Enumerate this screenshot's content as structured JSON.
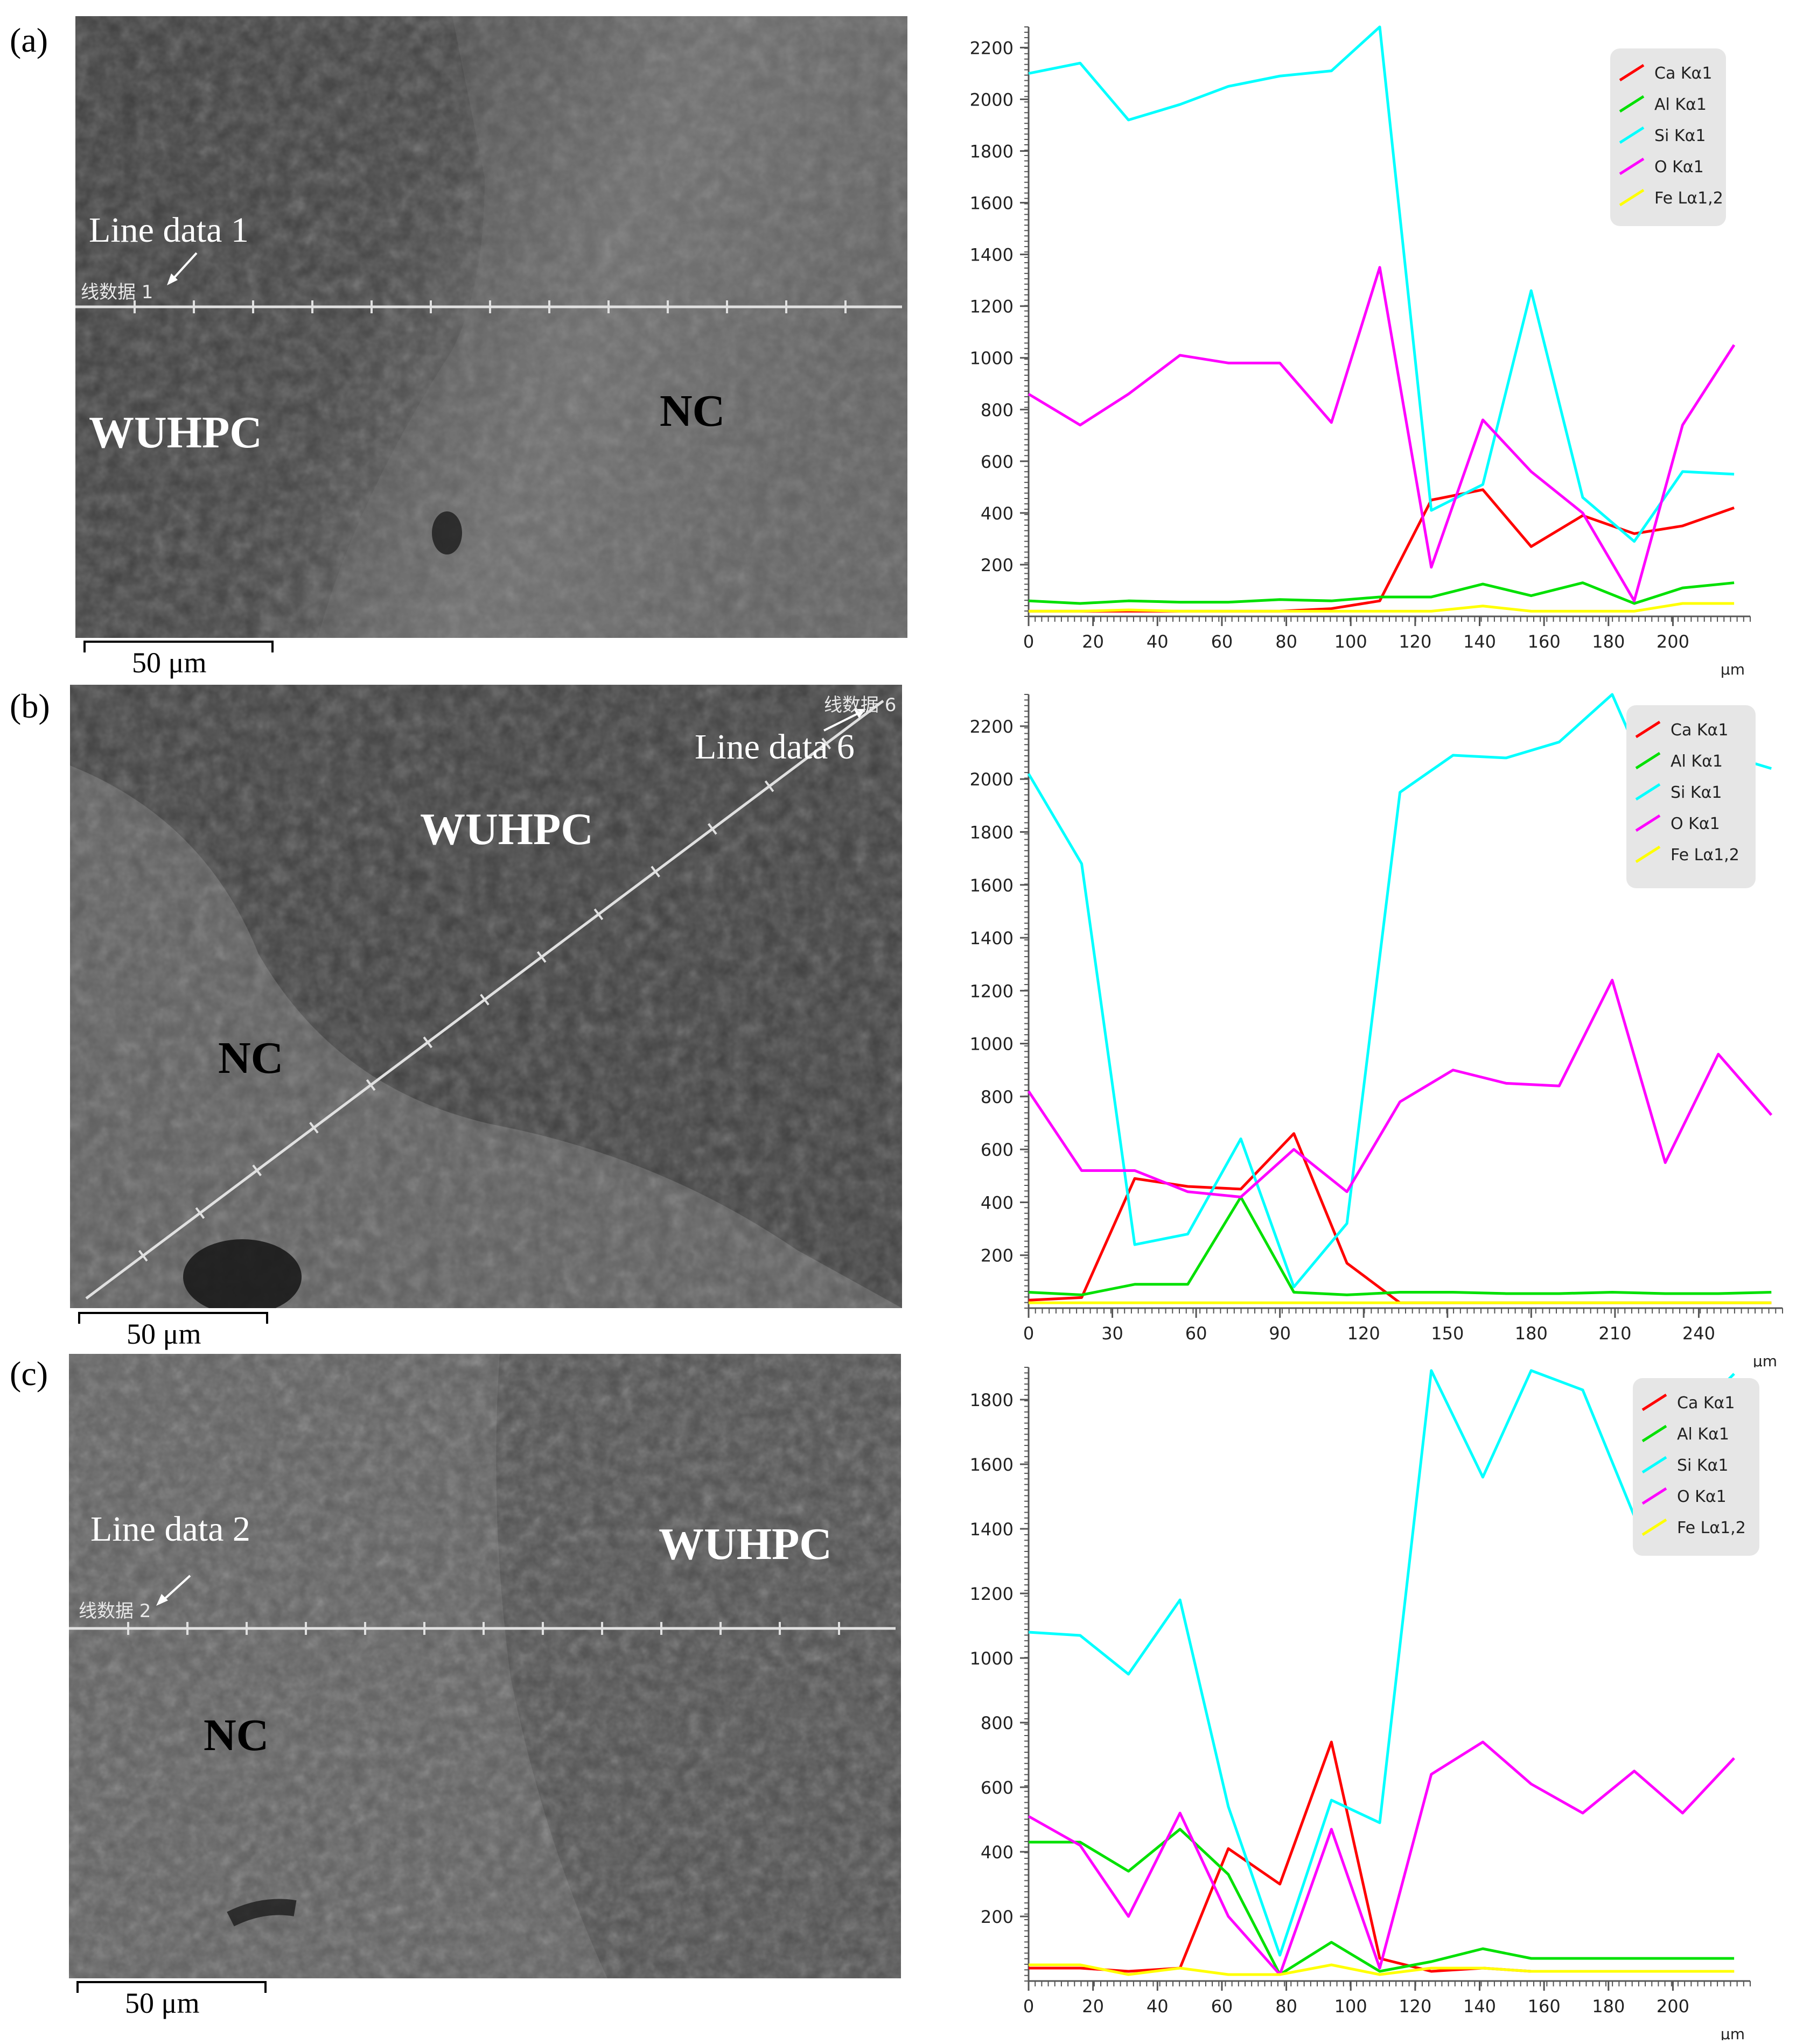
{
  "panels": [
    {
      "letter": "(a)",
      "sem": {
        "line_caption": "Line data 1",
        "line_small": "线数据 1",
        "labels": [
          "WUHPC",
          "NC"
        ],
        "scale_text": "50 μm"
      },
      "chart_data": {
        "type": "line",
        "x": [
          0,
          16,
          31,
          47,
          62,
          78,
          94,
          109,
          125,
          141,
          156,
          172,
          188,
          203,
          219
        ],
        "xticks": [
          0,
          20,
          40,
          60,
          80,
          100,
          120,
          140,
          160,
          180,
          200
        ],
        "xlim": [
          0,
          224
        ],
        "xunit": "μm",
        "yticks": [
          200,
          400,
          600,
          800,
          1000,
          1200,
          1400,
          1600,
          1800,
          2000,
          2200
        ],
        "ylim": [
          0,
          2280
        ],
        "series": [
          {
            "name": "Ca Kα1",
            "color": "#ff0000",
            "values": [
              20,
              20,
              20,
              20,
              20,
              20,
              30,
              60,
              450,
              490,
              270,
              390,
              320,
              350,
              420
            ]
          },
          {
            "name": "Al Kα1",
            "color": "#00e000",
            "values": [
              60,
              50,
              60,
              55,
              55,
              65,
              60,
              75,
              75,
              125,
              80,
              130,
              50,
              110,
              130
            ]
          },
          {
            "name": "Si Kα1",
            "color": "#00ffff",
            "values": [
              2100,
              2140,
              1920,
              1980,
              2050,
              2090,
              2110,
              2280,
              410,
              510,
              1260,
              460,
              290,
              560,
              550
            ]
          },
          {
            "name": "O Kα1",
            "color": "#ff00ff",
            "values": [
              860,
              740,
              860,
              1010,
              980,
              980,
              750,
              1350,
              190,
              760,
              560,
              400,
              60,
              740,
              1050
            ]
          },
          {
            "name": "Fe Lα1,2",
            "color": "#ffff00",
            "values": [
              20,
              20,
              25,
              20,
              20,
              20,
              20,
              20,
              20,
              40,
              20,
              20,
              20,
              50,
              50
            ]
          }
        ]
      }
    },
    {
      "letter": "(b)",
      "sem": {
        "line_caption": "Line data 6",
        "line_small": "线数据 6",
        "labels": [
          "WUHPC",
          "NC"
        ],
        "scale_text": "50 μm"
      },
      "chart_data": {
        "type": "line",
        "x": [
          0,
          19,
          38,
          57,
          76,
          95,
          114,
          133,
          152,
          171,
          190,
          209,
          228,
          247,
          266
        ],
        "xticks": [
          0,
          30,
          60,
          90,
          120,
          150,
          180,
          210,
          240
        ],
        "xlim": [
          0,
          270
        ],
        "xunit": "μm",
        "yticks": [
          200,
          400,
          600,
          800,
          1000,
          1200,
          1400,
          1600,
          1800,
          2000,
          2200
        ],
        "ylim": [
          0,
          2320
        ],
        "series": [
          {
            "name": "Ca Kα1",
            "color": "#ff0000",
            "values": [
              30,
              40,
              490,
              460,
              450,
              660,
              170,
              20,
              20,
              20,
              20,
              20,
              20,
              20,
              20
            ]
          },
          {
            "name": "Al Kα1",
            "color": "#00e000",
            "values": [
              60,
              50,
              90,
              90,
              420,
              60,
              50,
              60,
              60,
              55,
              55,
              60,
              55,
              55,
              60
            ]
          },
          {
            "name": "Si Kα1",
            "color": "#00ffff",
            "values": [
              2020,
              1680,
              240,
              280,
              640,
              80,
              320,
              1950,
              2090,
              2080,
              2140,
              2320,
              1860,
              2100,
              2040
            ]
          },
          {
            "name": "O Kα1",
            "color": "#ff00ff",
            "values": [
              820,
              520,
              520,
              440,
              420,
              600,
              440,
              780,
              900,
              850,
              840,
              1240,
              550,
              960,
              730
            ]
          },
          {
            "name": "Fe Lα1,2",
            "color": "#ffff00",
            "values": [
              20,
              20,
              20,
              20,
              20,
              20,
              20,
              20,
              20,
              20,
              20,
              20,
              20,
              20,
              20
            ]
          }
        ]
      }
    },
    {
      "letter": "(c)",
      "sem": {
        "line_caption": "Line data 2",
        "line_small": "线数据 2",
        "labels": [
          "WUHPC",
          "NC"
        ],
        "scale_text": "50 μm"
      },
      "chart_data": {
        "type": "line",
        "x": [
          0,
          16,
          31,
          47,
          62,
          78,
          94,
          109,
          125,
          141,
          156,
          172,
          188,
          203,
          219
        ],
        "xticks": [
          0,
          20,
          40,
          60,
          80,
          100,
          120,
          140,
          160,
          180,
          200
        ],
        "xlim": [
          0,
          224
        ],
        "xunit": "μm",
        "yticks": [
          200,
          400,
          600,
          800,
          1000,
          1200,
          1400,
          1600,
          1800
        ],
        "ylim": [
          0,
          1900
        ],
        "series": [
          {
            "name": "Ca Kα1",
            "color": "#ff0000",
            "values": [
              40,
              40,
              30,
              40,
              410,
              300,
              740,
              70,
              30,
              40,
              30,
              30,
              30,
              30,
              30
            ]
          },
          {
            "name": "Al Kα1",
            "color": "#00e000",
            "values": [
              430,
              430,
              340,
              470,
              330,
              20,
              120,
              30,
              60,
              100,
              70,
              70,
              70,
              70,
              70
            ]
          },
          {
            "name": "Si Kα1",
            "color": "#00ffff",
            "values": [
              1080,
              1070,
              950,
              1180,
              540,
              80,
              560,
              490,
              1890,
              1560,
              1890,
              1830,
              1440,
              1720,
              1880
            ]
          },
          {
            "name": "O Kα1",
            "color": "#ff00ff",
            "values": [
              510,
              420,
              200,
              520,
              200,
              20,
              470,
              40,
              640,
              740,
              610,
              520,
              650,
              520,
              690
            ]
          },
          {
            "name": "Fe Lα1,2",
            "color": "#ffff00",
            "values": [
              50,
              50,
              20,
              40,
              20,
              20,
              50,
              20,
              40,
              40,
              30,
              30,
              30,
              30,
              30
            ]
          }
        ]
      }
    }
  ],
  "colors": {
    "sem_bg": "#4a4a4a",
    "legend_bg": "#e6e6e6",
    "axis": "#555555"
  }
}
